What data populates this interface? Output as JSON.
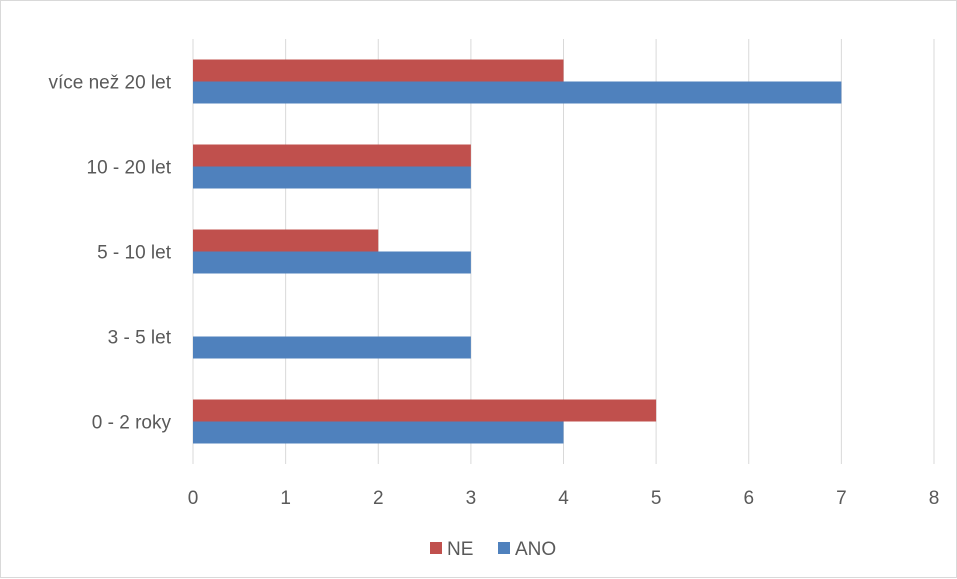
{
  "chart_data": {
    "type": "bar",
    "orientation": "horizontal",
    "categories": [
      "0 - 2 roky",
      "3 - 5 let",
      "5 - 10 let",
      "10 - 20 let",
      "více než 20 let"
    ],
    "series": [
      {
        "name": "ANO",
        "color": "#4f81bd",
        "values": [
          4,
          3,
          3,
          3,
          7
        ]
      },
      {
        "name": "NE",
        "color": "#c0504d",
        "values": [
          5,
          0,
          2,
          3,
          4
        ]
      }
    ],
    "xlim": [
      0,
      8
    ],
    "xticks": [
      "0",
      "1",
      "2",
      "3",
      "4",
      "5",
      "6",
      "7",
      "8"
    ],
    "grid": true,
    "legend": {
      "position": "bottom",
      "order": [
        "NE",
        "ANO"
      ]
    }
  }
}
